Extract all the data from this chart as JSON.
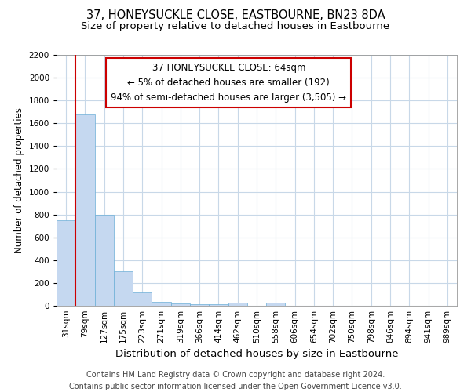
{
  "title": "37, HONEYSUCKLE CLOSE, EASTBOURNE, BN23 8DA",
  "subtitle": "Size of property relative to detached houses in Eastbourne",
  "xlabel": "Distribution of detached houses by size in Eastbourne",
  "ylabel": "Number of detached properties",
  "categories": [
    "31sqm",
    "79sqm",
    "127sqm",
    "175sqm",
    "223sqm",
    "271sqm",
    "319sqm",
    "366sqm",
    "414sqm",
    "462sqm",
    "510sqm",
    "558sqm",
    "606sqm",
    "654sqm",
    "702sqm",
    "750sqm",
    "798sqm",
    "846sqm",
    "894sqm",
    "941sqm",
    "989sqm"
  ],
  "values": [
    750,
    1680,
    800,
    300,
    120,
    35,
    20,
    15,
    15,
    30,
    0,
    30,
    0,
    0,
    0,
    0,
    0,
    0,
    0,
    0,
    0
  ],
  "bar_color": "#c5d8f0",
  "bar_edgecolor": "#6baed6",
  "grid_color": "#c8d8e8",
  "annotation_text": "37 HONEYSUCKLE CLOSE: 64sqm\n← 5% of detached houses are smaller (192)\n94% of semi-detached houses are larger (3,505) →",
  "annotation_box_color": "#ffffff",
  "annotation_box_edgecolor": "#cc0000",
  "vline_color": "#cc0000",
  "vline_x": 0.5,
  "ylim": [
    0,
    2200
  ],
  "yticks": [
    0,
    200,
    400,
    600,
    800,
    1000,
    1200,
    1400,
    1600,
    1800,
    2000,
    2200
  ],
  "footer_line1": "Contains HM Land Registry data © Crown copyright and database right 2024.",
  "footer_line2": "Contains public sector information licensed under the Open Government Licence v3.0.",
  "title_fontsize": 10.5,
  "subtitle_fontsize": 9.5,
  "xlabel_fontsize": 9.5,
  "ylabel_fontsize": 8.5,
  "tick_fontsize": 7.5,
  "footer_fontsize": 7,
  "annotation_fontsize": 8.5
}
